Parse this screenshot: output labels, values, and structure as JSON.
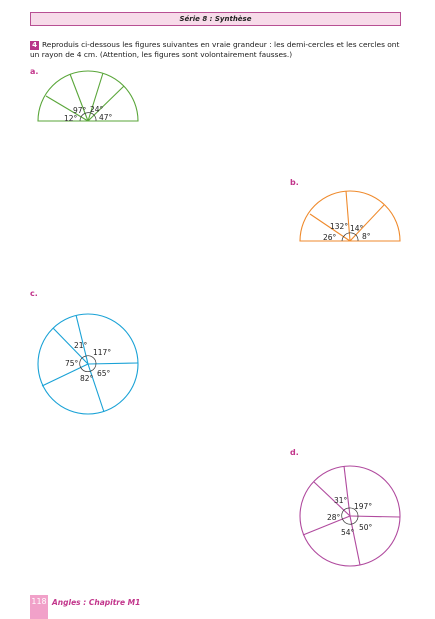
{
  "header": {
    "title": "Série 8 : Synthèse"
  },
  "exercise": {
    "number": "4",
    "text": "Reproduis ci-dessous les figures suivantes en vraie grandeur : les demi-cercles et les cercles ont un rayon de 4 cm. (Attention, les figures sont volontairement fausses.)"
  },
  "figures": {
    "a": {
      "label": "a.",
      "color": "#5aa63a",
      "angles": [
        "97°",
        "24°",
        "12°",
        "47°"
      ]
    },
    "b": {
      "label": "b.",
      "color": "#ef8a2c",
      "angles": [
        "132°",
        "14°",
        "26°",
        "8°"
      ]
    },
    "c": {
      "label": "c.",
      "color": "#1aa2d6",
      "angles": [
        "21°",
        "117°",
        "75°",
        "65°",
        "82°"
      ]
    },
    "d": {
      "label": "d.",
      "color": "#b04a9e",
      "angles": [
        "31°",
        "197°",
        "28°",
        "50°",
        "54°"
      ]
    }
  },
  "footer": {
    "page": "118",
    "title": "Angles : Chapitre M1"
  }
}
